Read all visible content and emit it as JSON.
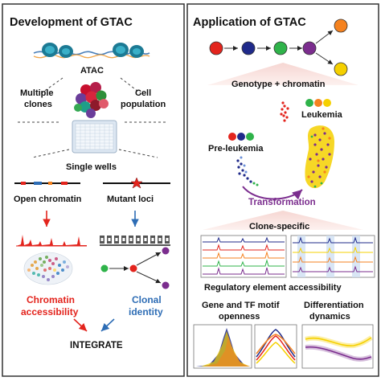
{
  "left_panel": {
    "title": "Development of GTAC",
    "atac_label": "ATAC",
    "multiple_clones": [
      "Multiple",
      "clones"
    ],
    "cell_population": [
      "Cell",
      "population"
    ],
    "single_wells": "Single wells",
    "open_chromatin": "Open chromatin",
    "mutant_loci": "Mutant loci",
    "chromatin_accessibility": [
      "Chromatin",
      "accessibility"
    ],
    "clonal_identity": [
      "Clonal",
      "identity"
    ],
    "integrate": "INTEGRATE"
  },
  "right_panel": {
    "title": "Application of GTAC",
    "genotype_chromatin": "Genotype + chromatin",
    "leukemia": "Leukemia",
    "pre_leukemia": "Pre-leukemia",
    "transformation": "Transformation",
    "clone_specific": "Clone-specific",
    "regulatory_element": "Regulatory element accessibility",
    "motif_openness": [
      "Gene and TF motif",
      "openness"
    ],
    "differentiation": [
      "Differentiation",
      "dynamics"
    ]
  },
  "colors": {
    "red": "#e3241d",
    "blue": "#2e6db5",
    "purple": "#7b2d8e",
    "green": "#2fb34a",
    "navy": "#1f2a8a",
    "orange": "#f5821f",
    "yellow": "#f5d000",
    "border": "#333333"
  }
}
